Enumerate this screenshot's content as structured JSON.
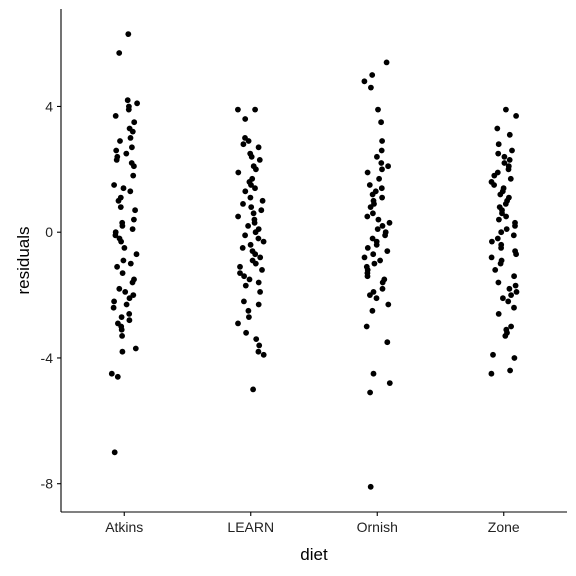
{
  "chart_data": {
    "type": "scatter",
    "title": "",
    "xlabel": "diet",
    "ylabel": "residuals",
    "categories": [
      "Atkins",
      "LEARN",
      "Ornish",
      "Zone"
    ],
    "y_ticks": [
      -8,
      -4,
      0,
      4
    ],
    "ylim": [
      -8.9,
      7.1
    ],
    "grid": false,
    "legend": "none",
    "point_color": "#000000",
    "series": [
      {
        "category": "Atkins",
        "values": [
          6.3,
          5.7,
          4.2,
          4.1,
          4.0,
          3.9,
          3.7,
          3.5,
          3.3,
          3.2,
          3.0,
          2.9,
          2.7,
          2.6,
          2.5,
          2.4,
          2.3,
          2.2,
          2.1,
          1.8,
          1.5,
          1.4,
          1.3,
          1.1,
          1.0,
          0.8,
          0.7,
          0.4,
          0.3,
          0.2,
          0.1,
          0.0,
          -0.1,
          -0.2,
          -0.3,
          -0.5,
          -0.7,
          -0.9,
          -1.0,
          -1.1,
          -1.3,
          -1.5,
          -1.6,
          -1.8,
          -1.9,
          -2.0,
          -2.1,
          -2.2,
          -2.3,
          -2.4,
          -2.6,
          -2.7,
          -2.8,
          -2.9,
          -3.0,
          -3.1,
          -3.3,
          -3.7,
          -3.8,
          -4.5,
          -4.6,
          -7.0
        ]
      },
      {
        "category": "LEARN",
        "values": [
          3.9,
          3.9,
          3.6,
          3.0,
          2.9,
          2.8,
          2.7,
          2.5,
          2.4,
          2.3,
          2.1,
          2.0,
          1.9,
          1.7,
          1.6,
          1.5,
          1.4,
          1.3,
          1.1,
          1.0,
          0.9,
          0.8,
          0.7,
          0.6,
          0.5,
          0.4,
          0.3,
          0.2,
          0.1,
          0.0,
          -0.1,
          -0.2,
          -0.3,
          -0.4,
          -0.5,
          -0.6,
          -0.7,
          -0.8,
          -0.9,
          -1.0,
          -1.1,
          -1.2,
          -1.3,
          -1.4,
          -1.5,
          -1.6,
          -1.7,
          -1.9,
          -2.2,
          -2.3,
          -2.5,
          -2.7,
          -2.9,
          -3.2,
          -3.4,
          -3.6,
          -3.8,
          -3.9,
          -5.0
        ]
      },
      {
        "category": "Ornish",
        "values": [
          5.4,
          5.0,
          4.8,
          4.6,
          3.9,
          3.5,
          2.9,
          2.6,
          2.4,
          2.2,
          2.1,
          2.0,
          1.9,
          1.7,
          1.5,
          1.4,
          1.3,
          1.2,
          1.1,
          1.0,
          0.9,
          0.8,
          0.6,
          0.5,
          0.4,
          0.3,
          0.2,
          0.1,
          0.0,
          -0.1,
          -0.2,
          -0.3,
          -0.4,
          -0.5,
          -0.6,
          -0.7,
          -0.8,
          -0.9,
          -1.0,
          -1.1,
          -1.2,
          -1.3,
          -1.4,
          -1.5,
          -1.6,
          -1.8,
          -1.9,
          -2.0,
          -2.1,
          -2.3,
          -2.5,
          -3.0,
          -3.5,
          -4.5,
          -4.8,
          -5.1,
          -8.1
        ]
      },
      {
        "category": "Zone",
        "values": [
          3.9,
          3.7,
          3.3,
          3.1,
          2.8,
          2.6,
          2.5,
          2.4,
          2.3,
          2.2,
          2.1,
          2.0,
          1.9,
          1.8,
          1.7,
          1.6,
          1.5,
          1.4,
          1.3,
          1.2,
          1.1,
          1.0,
          0.9,
          0.8,
          0.7,
          0.6,
          0.5,
          0.4,
          0.3,
          0.2,
          0.1,
          0.0,
          -0.1,
          -0.2,
          -0.3,
          -0.4,
          -0.5,
          -0.6,
          -0.7,
          -0.8,
          -0.9,
          -1.0,
          -1.2,
          -1.4,
          -1.6,
          -1.7,
          -1.8,
          -1.9,
          -2.0,
          -2.1,
          -2.2,
          -2.4,
          -2.6,
          -3.0,
          -3.1,
          -3.2,
          -3.3,
          -3.9,
          -4.0,
          -4.4,
          -4.5
        ]
      }
    ]
  }
}
